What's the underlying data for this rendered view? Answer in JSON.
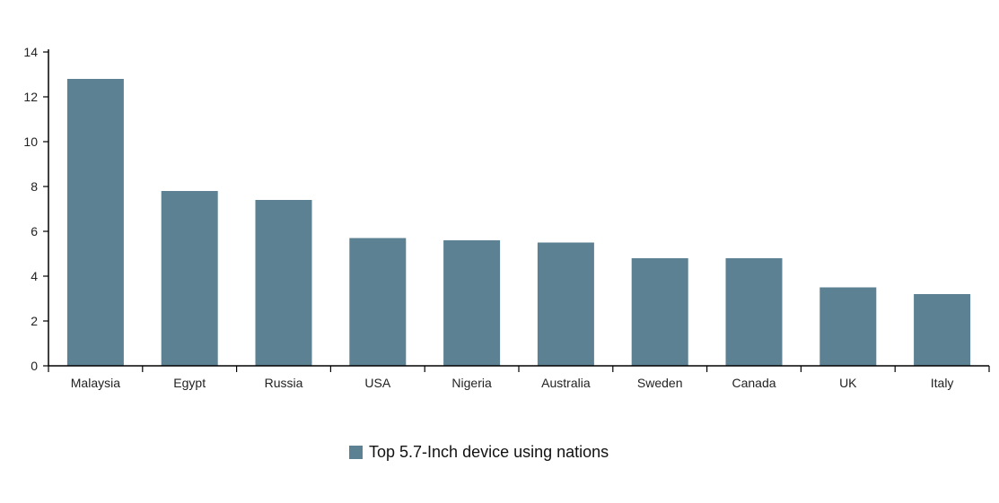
{
  "chart_data": {
    "type": "bar",
    "categories": [
      "Malaysia",
      "Egypt",
      "Russia",
      "USA",
      "Nigeria",
      "Australia",
      "Sweden",
      "Canada",
      "UK",
      "Italy"
    ],
    "series": [
      {
        "name": "Top 5.7-Inch device using nations",
        "values": [
          12.8,
          7.8,
          7.4,
          5.7,
          5.6,
          5.5,
          4.8,
          4.8,
          3.5,
          3.2
        ],
        "color": "#5b8193"
      }
    ],
    "ylim": [
      0,
      14
    ],
    "yticks": [
      "0",
      "2",
      "4",
      "6",
      "8",
      "10",
      "12",
      "14"
    ],
    "grid": false,
    "legend_position": "bottom-center"
  }
}
